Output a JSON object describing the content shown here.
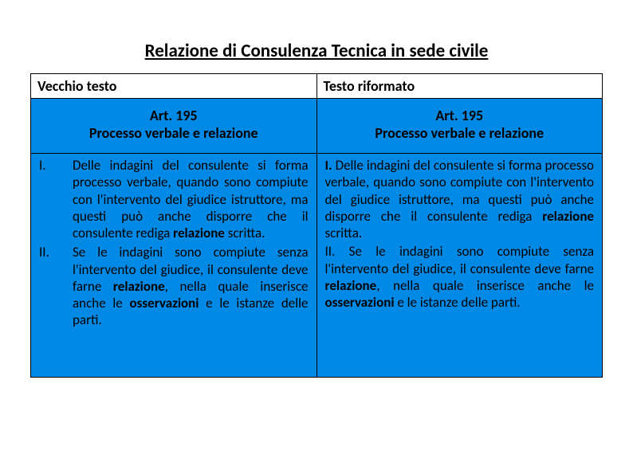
{
  "title": "Relazione di Consulenza Tecnica in sede civile",
  "table": {
    "headers": {
      "left": "Vecchio testo",
      "right": "Testo riformato"
    },
    "subheaders": {
      "left_line1": "Art. 195",
      "left_line2": "Processo verbale e relazione",
      "right_line1": "Art. 195",
      "right_line2": "Processo verbale e relazione"
    },
    "left_body": {
      "item1_num": "I.",
      "item1_a": "Delle indagini del consulente si forma processo verbale, quando sono compiute con l'intervento del giudice istruttore, ma questi può anche disporre che il consulente rediga ",
      "item1_b": "relazione",
      "item1_c": " scritta.",
      "item2_num": "II.",
      "item2_a": "Se le indagini sono compiute senza l'intervento del giudice, il consulente deve farne ",
      "item2_b": "relazione",
      "item2_c": ", nella quale inserisce anche le ",
      "item2_d": "osservazioni",
      "item2_e": " e le istanze delle parti."
    },
    "right_body": {
      "p1_a": "I.",
      "p1_b": " Delle indagini del consulente si forma processo verbale, quando sono compiute con l'intervento del giudice istruttore, ma questi può anche disporre che il consulente rediga ",
      "p1_c": "relazione",
      "p1_d": " scritta.",
      "p2_a": "II. Se le indagini sono compiute senza l'intervento del giudice, il consulente deve farne ",
      "p2_b": "relazione",
      "p2_c": ", nella quale inserisce anche le ",
      "p2_d": "osservazioni",
      "p2_e": " e le istanze delle parti."
    }
  },
  "colors": {
    "blue_bg": "#008ae6",
    "text": "#000000",
    "page_bg": "#ffffff"
  }
}
